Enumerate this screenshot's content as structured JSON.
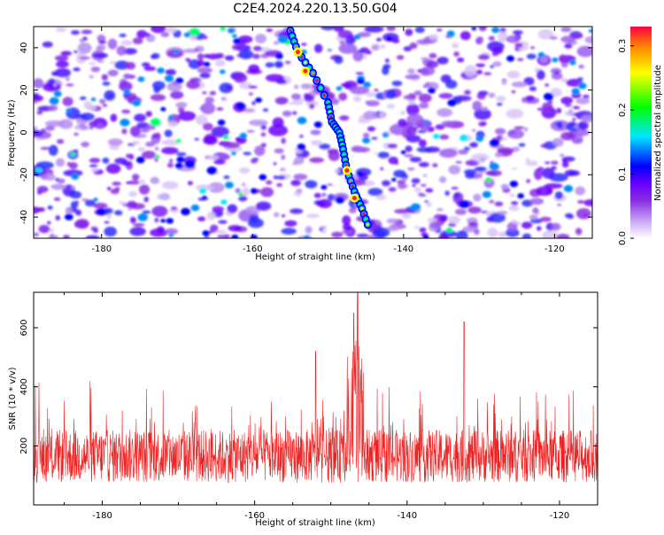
{
  "title": "C2E4.2024.220.13.50.G04",
  "chart_data": [
    {
      "type": "heatmap",
      "xlabel": "Height of straight line (km)",
      "ylabel": "Frequency (Hz)",
      "xlim": [
        -189,
        -115
      ],
      "ylim": [
        -50,
        50
      ],
      "x_ticks": [
        -180,
        -160,
        -140,
        -120
      ],
      "y_ticks": [
        -40,
        -20,
        0,
        20,
        40
      ],
      "colorbar": {
        "label": "Normalized spectral amplitude",
        "range": [
          0.0,
          0.33
        ],
        "ticks": [
          0.0,
          0.1,
          0.2,
          0.3
        ],
        "colormap": [
          "#ffffff",
          "#c9a8f5",
          "#8a2be2",
          "#6600ff",
          "#0000ff",
          "#00e5ff",
          "#00ff00",
          "#ffff00",
          "#ff8c00",
          "#ff0040"
        ]
      },
      "ridge": {
        "description": "bright diagonal streak",
        "points": [
          [
            -155,
            48
          ],
          [
            -154,
            38
          ],
          [
            -152,
            28
          ],
          [
            -150,
            14
          ],
          [
            -149.5,
            5
          ],
          [
            -148.5,
            0
          ],
          [
            -148,
            -8
          ],
          [
            -147.5,
            -18
          ],
          [
            -146.5,
            -28
          ],
          [
            -145.5,
            -36
          ],
          [
            -144.5,
            -46
          ]
        ]
      }
    },
    {
      "type": "line",
      "xlabel": "Height of straight line (km)",
      "ylabel": "SNR (10 * v/v)",
      "xlim": [
        -189,
        -115
      ],
      "ylim": [
        0,
        720
      ],
      "x_ticks": [
        -180,
        -160,
        -140,
        -120
      ],
      "y_ticks": [
        200,
        400,
        600
      ],
      "series": [
        {
          "color": "#ee2222",
          "baseline_mean": 165,
          "noise_peak_max": 420,
          "peaks": [
            [
              -146.5,
              720
            ],
            [
              -146.0,
              700
            ],
            [
              -147.0,
              650
            ],
            [
              -132.5,
              620
            ],
            [
              -152.0,
              520
            ],
            [
              -146.8,
              540
            ]
          ]
        }
      ]
    }
  ]
}
